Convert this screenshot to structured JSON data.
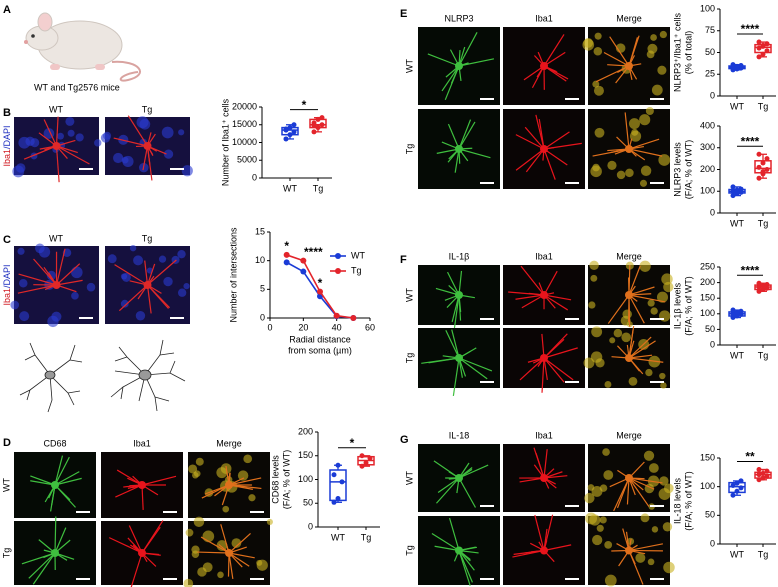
{
  "figure": {
    "panel_labels": [
      "A",
      "B",
      "C",
      "D",
      "E",
      "F",
      "G"
    ],
    "mouse_caption": "WT and Tg2576 mice",
    "B": {
      "columns": [
        "WT",
        "Tg"
      ],
      "stain": [
        "Iba1",
        "/DAPI"
      ]
    },
    "C": {
      "columns": [
        "WT",
        "Tg"
      ],
      "stain": [
        "Iba1",
        "/DAPI"
      ]
    },
    "D": {
      "columns": [
        "CD68",
        "Iba1",
        "Merge"
      ],
      "rows": [
        "WT",
        "Tg"
      ]
    },
    "E": {
      "columns": [
        "NLRP3",
        "Iba1",
        "Merge"
      ],
      "rows": [
        "WT",
        "Tg"
      ]
    },
    "F": {
      "columns": [
        "IL-1β",
        "Iba1",
        "Merge"
      ],
      "rows": [
        "WT",
        "Tg"
      ]
    },
    "G": {
      "columns": [
        "IL-18",
        "Iba1",
        "Merge"
      ],
      "rows": [
        "WT",
        "Tg"
      ]
    }
  },
  "chart_data": [
    {
      "type": "box",
      "ylabel": [
        "Number of Iba1⁺ cells"
      ],
      "categories": [
        "WT",
        "Tg"
      ],
      "colors": [
        "#1a3bd6",
        "#e3242b"
      ],
      "points": [
        [
          11000,
          12200,
          13000,
          13500,
          14200,
          15000,
          13800
        ],
        [
          13000,
          14200,
          15000,
          15500,
          16500,
          17000,
          14800
        ]
      ],
      "boxes": [
        {
          "min": 11000,
          "q1": 12200,
          "median": 13500,
          "q3": 14200,
          "max": 15000
        },
        {
          "min": 13000,
          "q1": 14200,
          "median": 15000,
          "q3": 16500,
          "max": 17000
        }
      ],
      "ylim": [
        0,
        20000
      ],
      "yticks": [
        0,
        5000,
        10000,
        15000,
        20000
      ],
      "significance": "*"
    },
    {
      "type": "line",
      "ylabel": [
        "Number of intersections"
      ],
      "xlabel": [
        "Radial distance",
        "from soma (µm)"
      ],
      "x": [
        10,
        20,
        30,
        40,
        50
      ],
      "series": [
        {
          "name": "WT",
          "color": "#1a3bd6",
          "values": [
            9.7,
            8.1,
            3.8,
            0.3,
            0
          ]
        },
        {
          "name": "Tg",
          "color": "#e3242b",
          "values": [
            11,
            10,
            4.6,
            0.4,
            0
          ]
        }
      ],
      "xlim": [
        0,
        60
      ],
      "xticks": [
        0,
        20,
        40,
        60
      ],
      "ylim": [
        0,
        15
      ],
      "yticks": [
        0,
        5,
        10,
        15
      ],
      "annotations": [
        {
          "x": 10,
          "text": "*"
        },
        {
          "x": 20,
          "text": "****"
        },
        {
          "x": 30,
          "text": "*"
        }
      ],
      "legend": "upper right"
    },
    {
      "type": "box",
      "ylabel": [
        "CD68 levels",
        "(F/A; % of WT)"
      ],
      "categories": [
        "WT",
        "Tg"
      ],
      "colors": [
        "#1a3bd6",
        "#e3242b"
      ],
      "points": [
        [
          52,
          60,
          95,
          110,
          130
        ],
        [
          128,
          135,
          145,
          150
        ]
      ],
      "boxes": [
        {
          "min": 52,
          "q1": 56,
          "median": 95,
          "q3": 120,
          "max": 130
        },
        {
          "min": 128,
          "q1": 131,
          "median": 140,
          "q3": 148,
          "max": 150
        }
      ],
      "ylim": [
        0,
        200
      ],
      "yticks": [
        0,
        50,
        100,
        150,
        200
      ],
      "significance": "*"
    },
    {
      "type": "box",
      "ylabel": [
        "NLRP3⁺/Iba1⁺ cells",
        "(% of total)"
      ],
      "categories": [
        "WT",
        "Tg"
      ],
      "colors": [
        "#1a3bd6",
        "#e3242b"
      ],
      "points": [
        [
          30,
          31,
          32,
          33,
          34,
          35,
          36,
          33
        ],
        [
          45,
          48,
          52,
          55,
          57,
          60,
          62,
          58
        ]
      ],
      "boxes": [
        {
          "min": 30,
          "q1": 31.5,
          "median": 33,
          "q3": 34.5,
          "max": 36
        },
        {
          "min": 45,
          "q1": 50,
          "median": 56,
          "q3": 59,
          "max": 62
        }
      ],
      "ylim": [
        0,
        100
      ],
      "yticks": [
        0,
        25,
        50,
        75,
        100
      ],
      "significance": "****"
    },
    {
      "type": "box",
      "ylabel": [
        "NLRP3 levels",
        "(F/A; % of WT)"
      ],
      "categories": [
        "WT",
        "Tg"
      ],
      "colors": [
        "#1a3bd6",
        "#e3242b"
      ],
      "points": [
        [
          80,
          90,
          95,
          100,
          105,
          110,
          120,
          98
        ],
        [
          160,
          180,
          200,
          210,
          230,
          250,
          270,
          190
        ]
      ],
      "boxes": [
        {
          "min": 80,
          "q1": 92,
          "median": 99,
          "q3": 108,
          "max": 120
        },
        {
          "min": 160,
          "q1": 185,
          "median": 205,
          "q3": 240,
          "max": 270
        }
      ],
      "ylim": [
        0,
        400
      ],
      "yticks": [
        0,
        100,
        200,
        300,
        400
      ],
      "significance": "****"
    },
    {
      "type": "box",
      "ylabel": [
        "IL-1β levels",
        "(F/A; % of WT)"
      ],
      "categories": [
        "WT",
        "Tg"
      ],
      "colors": [
        "#1a3bd6",
        "#e3242b"
      ],
      "points": [
        [
          88,
          93,
          98,
          100,
          104,
          108,
          112
        ],
        [
          172,
          178,
          182,
          186,
          190,
          194,
          198
        ]
      ],
      "boxes": [
        {
          "min": 88,
          "q1": 93,
          "median": 100,
          "q3": 106,
          "max": 112
        },
        {
          "min": 172,
          "q1": 178,
          "median": 186,
          "q3": 192,
          "max": 198
        }
      ],
      "ylim": [
        0,
        250
      ],
      "yticks": [
        0,
        50,
        100,
        150,
        200,
        250
      ],
      "significance": "****"
    },
    {
      "type": "box",
      "ylabel": [
        "IL-18 levels",
        "(F/A; % of WT)"
      ],
      "categories": [
        "WT",
        "Tg"
      ],
      "colors": [
        "#1a3bd6",
        "#e3242b"
      ],
      "points": [
        [
          85,
          92,
          98,
          102,
          106,
          110
        ],
        [
          112,
          115,
          118,
          121,
          123,
          127,
          130
        ]
      ],
      "boxes": [
        {
          "min": 85,
          "q1": 90,
          "median": 100,
          "q3": 107,
          "max": 110
        },
        {
          "min": 112,
          "q1": 115,
          "median": 121,
          "q3": 125,
          "max": 130
        }
      ],
      "ylim": [
        0,
        150
      ],
      "yticks": [
        0,
        50,
        100,
        150
      ],
      "significance": "**"
    }
  ]
}
